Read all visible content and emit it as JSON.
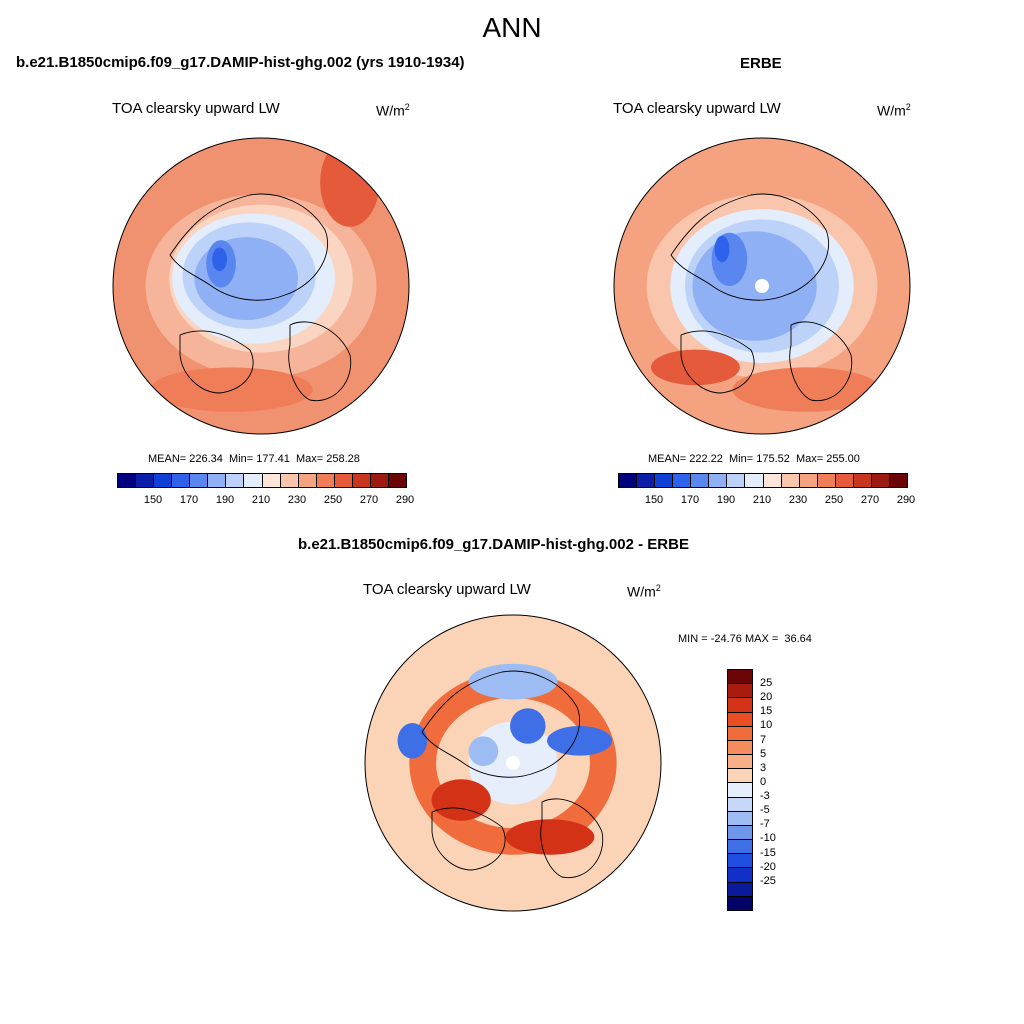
{
  "title": "ANN",
  "panels": [
    {
      "heading": "b.e21.B1850cmip6.f09_g17.DAMIP-hist-ghg.002 (yrs 1910-1934)",
      "variable": "TOA clearsky upward LW",
      "units_base": "W/m",
      "units_sup": "2",
      "stats": "MEAN= 226.34  Min= 177.41  Max= 258.28"
    },
    {
      "heading": "ERBE",
      "variable": "TOA clearsky upward LW",
      "units_base": "W/m",
      "units_sup": "2",
      "stats": "MEAN= 222.22  Min= 175.52  Max= 255.00"
    }
  ],
  "diff_panel": {
    "heading": "b.e21.B1850cmip6.f09_g17.DAMIP-hist-ghg.002 - ERBE",
    "variable": "TOA clearsky upward LW",
    "units_base": "W/m",
    "units_sup": "2",
    "stats": "MIN = -24.76 MAX =  36.64"
  },
  "field_colorbar": {
    "colors": [
      "#00007f",
      "#0a1ea8",
      "#1340d4",
      "#2e62ea",
      "#5a86f0",
      "#8fb0f4",
      "#bcd2f8",
      "#e3edfb",
      "#fde6d9",
      "#f9c6ad",
      "#f4a27f",
      "#ee7d58",
      "#e45a3a",
      "#c7361f",
      "#9c1a10",
      "#6b0505"
    ],
    "tick_labels": [
      "150",
      "170",
      "190",
      "210",
      "230",
      "250",
      "270",
      "290"
    ]
  },
  "diff_colorbar": {
    "colors": [
      "#6b0505",
      "#a71c0e",
      "#d33216",
      "#ec4d22",
      "#f06c3c",
      "#f48c5d",
      "#f8ae86",
      "#fbd3b6",
      "#e6eefb",
      "#c5d8f8",
      "#9cbcf3",
      "#6f98ed",
      "#3f6fe6",
      "#1f4ee0",
      "#1230c8",
      "#0a1a9a",
      "#030368"
    ],
    "tick_labels": [
      "25",
      "20",
      "15",
      "10",
      "7",
      "5",
      "3",
      "0",
      "-3",
      "-5",
      "-7",
      "-10",
      "-15",
      "-20",
      "-25"
    ]
  },
  "maps": [
    {
      "name": "model-polar-map",
      "bg": "#f09270",
      "features": [
        [
          "#f6b59a",
          0.0,
          0.0,
          0.78,
          0.62
        ],
        [
          "#fad5c2",
          0.0,
          0.05,
          0.62,
          0.5
        ],
        [
          "#e3edfb",
          -0.05,
          0.05,
          0.55,
          0.44
        ],
        [
          "#bcd2f8",
          -0.08,
          0.07,
          0.45,
          0.36
        ],
        [
          "#8fb0f4",
          -0.1,
          0.05,
          0.35,
          0.28
        ],
        [
          "#5a86f0",
          -0.27,
          0.15,
          0.1,
          0.16
        ],
        [
          "#2e62ea",
          -0.28,
          0.18,
          0.05,
          0.08
        ],
        [
          "#ee7d58",
          -0.2,
          -0.7,
          0.55,
          0.15
        ],
        [
          "#e45a3a",
          0.6,
          0.7,
          0.2,
          0.3
        ]
      ]
    },
    {
      "name": "erbe-polar-map",
      "bg": "#f4a27f",
      "features": [
        [
          "#f9c6ad",
          0.0,
          0.0,
          0.78,
          0.62
        ],
        [
          "#e3edfb",
          0.0,
          0.0,
          0.62,
          0.52
        ],
        [
          "#bcd2f8",
          0.0,
          0.0,
          0.52,
          0.45
        ],
        [
          "#8fb0f4",
          -0.05,
          0.0,
          0.42,
          0.37
        ],
        [
          "#5a86f0",
          -0.22,
          0.18,
          0.12,
          0.18
        ],
        [
          "#2e62ea",
          -0.27,
          0.25,
          0.05,
          0.09
        ],
        [
          "#ee7d58",
          0.3,
          -0.7,
          0.5,
          0.15
        ],
        [
          "#e45a3a",
          -0.45,
          -0.55,
          0.3,
          0.12
        ]
      ]
    },
    {
      "name": "difference-polar-map",
      "bg": "#fbd3b6",
      "features": [
        [
          "#f06c3c",
          0.0,
          0.0,
          0.7,
          0.62
        ],
        [
          "#fbd3b6",
          0.0,
          0.0,
          0.52,
          0.44
        ],
        [
          "#e6eefb",
          0.0,
          0.0,
          0.3,
          0.28
        ],
        [
          "#d33216",
          -0.35,
          -0.25,
          0.2,
          0.14
        ],
        [
          "#d33216",
          0.25,
          -0.5,
          0.3,
          0.12
        ],
        [
          "#3f6fe6",
          -0.68,
          0.15,
          0.1,
          0.12
        ],
        [
          "#3f6fe6",
          0.45,
          0.15,
          0.22,
          0.1
        ],
        [
          "#3f6fe6",
          0.1,
          0.25,
          0.12,
          0.12
        ],
        [
          "#9cbcf3",
          0.0,
          0.55,
          0.3,
          0.12
        ],
        [
          "#9cbcf3",
          -0.2,
          0.08,
          0.1,
          0.1
        ]
      ]
    }
  ]
}
